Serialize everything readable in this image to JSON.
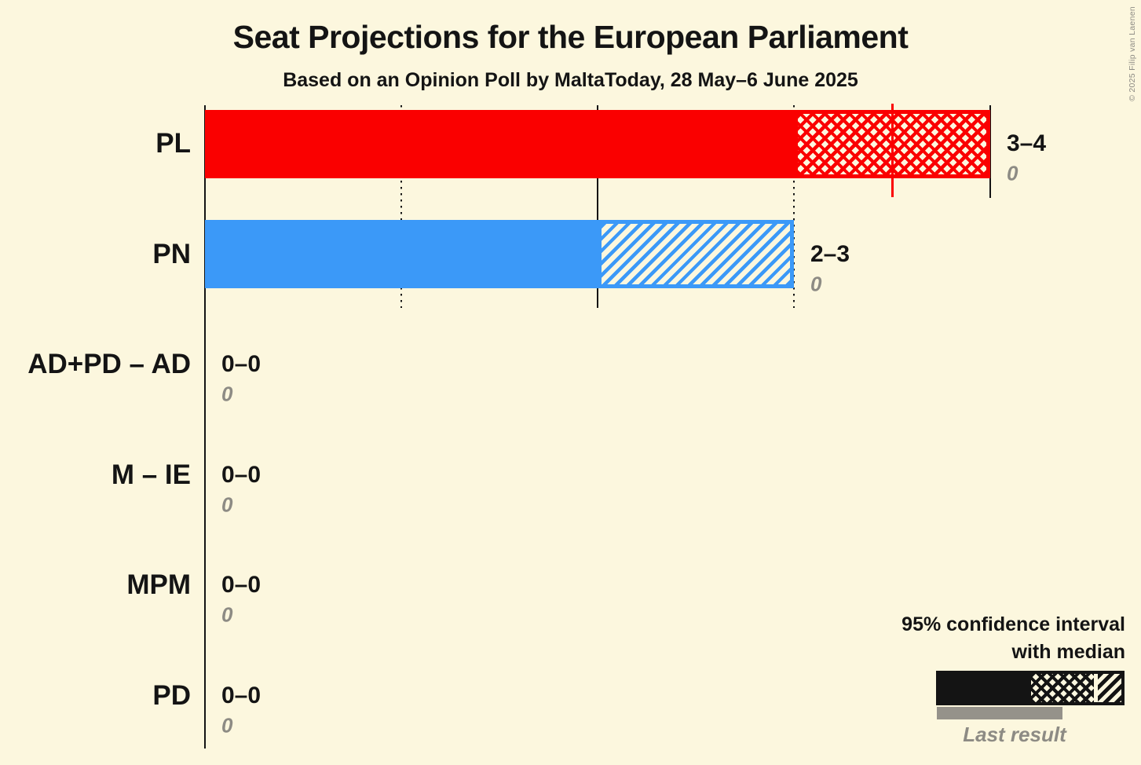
{
  "title": "Seat Projections for the European Parliament",
  "subtitle": "Based on an Opinion Poll by MaltaToday, 28 May–6 June 2025",
  "copyright": "© 2025 Filip van Laenen",
  "legend": {
    "ci_label_line1": "95% confidence interval",
    "ci_label_line2": "with median",
    "last_result_label": "Last result"
  },
  "colors": {
    "background": "#fcf7de",
    "axis_and_text": "#141414",
    "muted_gray": "#8d8b84",
    "last_result_bar_gray": "#95928a",
    "pl_red": "#fa0000",
    "pn_blue": "#3b99f8"
  },
  "chart_data": {
    "type": "bar",
    "orientation": "horizontal",
    "title": "Seat Projections for the European Parliament",
    "subtitle": "Based on an Opinion Poll by MaltaToday, 28 May–6 June 2025",
    "x_axis": {
      "min": 0,
      "max": 4,
      "gridline_values": [
        1,
        2,
        3,
        4
      ],
      "dotted_values": [
        1,
        3
      ],
      "solid_values": [
        2,
        4
      ]
    },
    "legend_note": "Bar shows 95% confidence interval with median; gray underbar is last result",
    "parties": [
      {
        "label": "PL",
        "ci_label": "3–4",
        "ci_low": 3,
        "ci_high": 4,
        "solid_to": 3,
        "median_line": 3.5,
        "hatch": "crosshatch",
        "color": "#fa0000",
        "last_result": 0,
        "last_result_label": "0"
      },
      {
        "label": "PN",
        "ci_label": "2–3",
        "ci_low": 2,
        "ci_high": 3,
        "solid_to": 2,
        "median_line": null,
        "hatch": "diagonal",
        "color": "#3b99f8",
        "last_result": 0,
        "last_result_label": "0"
      },
      {
        "label": "AD+PD – AD",
        "ci_label": "0–0",
        "ci_low": 0,
        "ci_high": 0,
        "solid_to": 0,
        "median_line": null,
        "hatch": null,
        "color": null,
        "last_result": 0,
        "last_result_label": "0"
      },
      {
        "label": "M – IE",
        "ci_label": "0–0",
        "ci_low": 0,
        "ci_high": 0,
        "solid_to": 0,
        "median_line": null,
        "hatch": null,
        "color": null,
        "last_result": 0,
        "last_result_label": "0"
      },
      {
        "label": "MPM",
        "ci_label": "0–0",
        "ci_low": 0,
        "ci_high": 0,
        "solid_to": 0,
        "median_line": null,
        "hatch": null,
        "color": null,
        "last_result": 0,
        "last_result_label": "0"
      },
      {
        "label": "PD",
        "ci_label": "0–0",
        "ci_low": 0,
        "ci_high": 0,
        "solid_to": 0,
        "median_line": null,
        "hatch": null,
        "color": null,
        "last_result": 0,
        "last_result_label": "0"
      }
    ]
  }
}
